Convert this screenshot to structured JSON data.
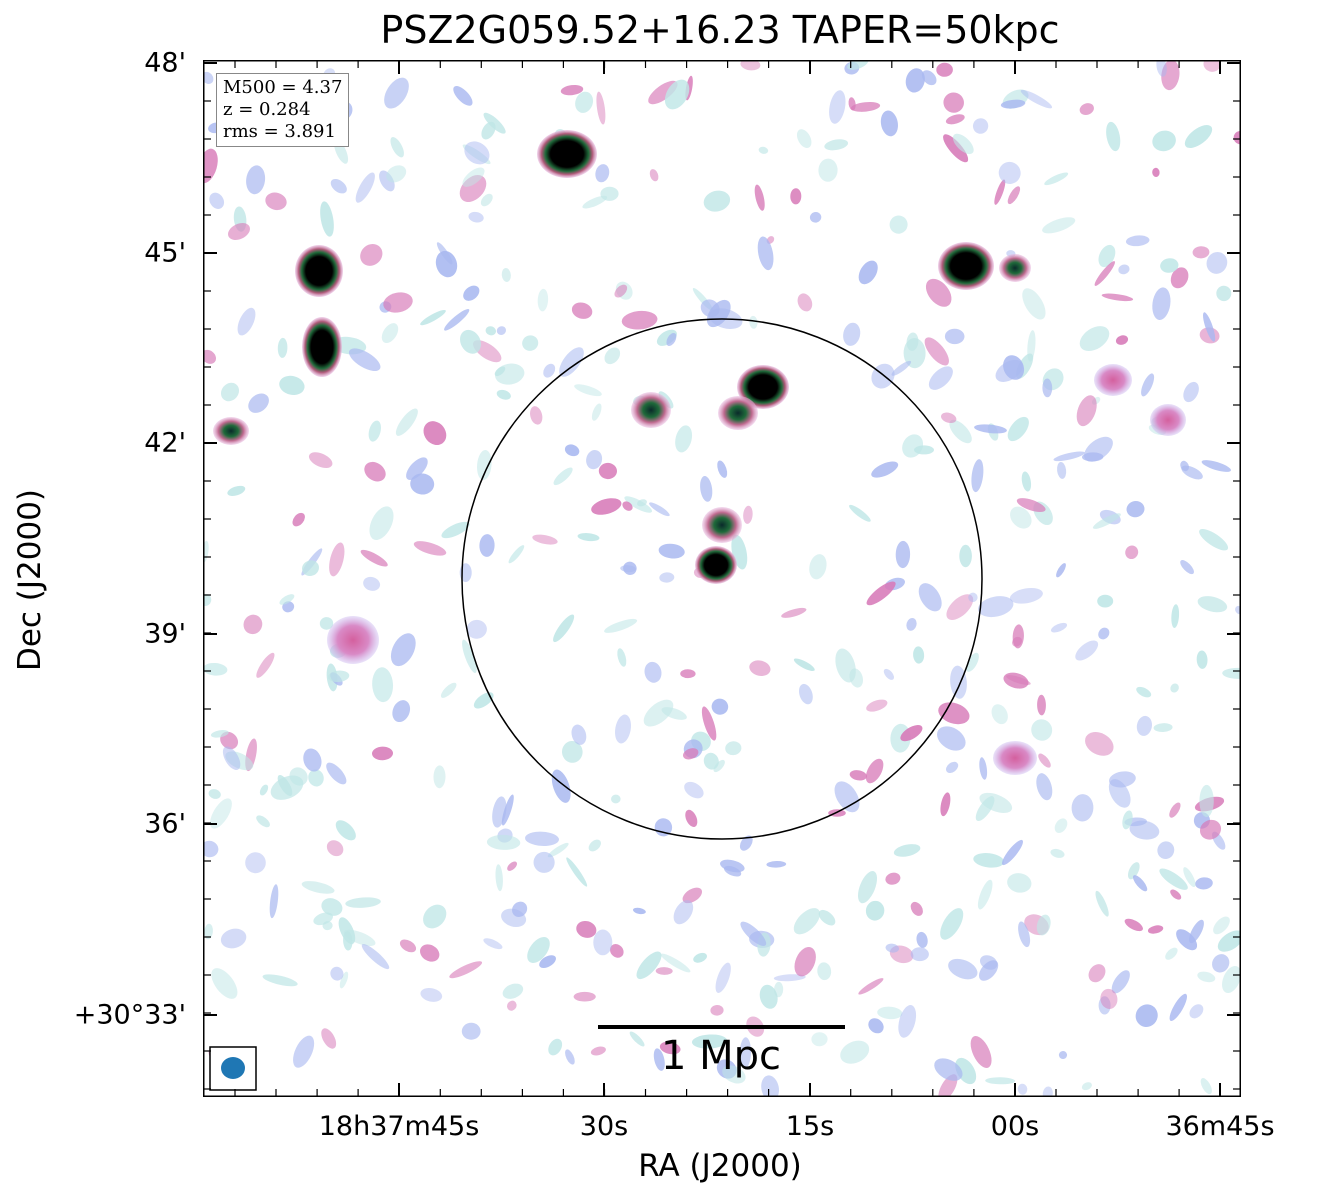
{
  "title": "PSZ2G059.52+16.23 TAPER=50kpc",
  "axes": {
    "xlabel": "RA (J2000)",
    "ylabel": "Dec (J2000)",
    "xticks": [
      "18h37m45s",
      "30s",
      "15s",
      "00s",
      "36m45s"
    ],
    "yticks": [
      "48'",
      "45'",
      "42'",
      "39'",
      "36'",
      "+30°33'"
    ]
  },
  "info": {
    "m500": "M500 = 4.37",
    "z": "z = 0.284",
    "rms": "rms = 3.891"
  },
  "scalebar": {
    "label": "1 Mpc"
  },
  "colors": {
    "beam": "#1f77b4",
    "noise_light": "#bfe6e6",
    "noise_mid": "#a9b8f0",
    "noise_strong": "#d77ab8",
    "source_core": "#000000",
    "source_ring": "#1f6a3a",
    "circle": "#000000"
  }
}
